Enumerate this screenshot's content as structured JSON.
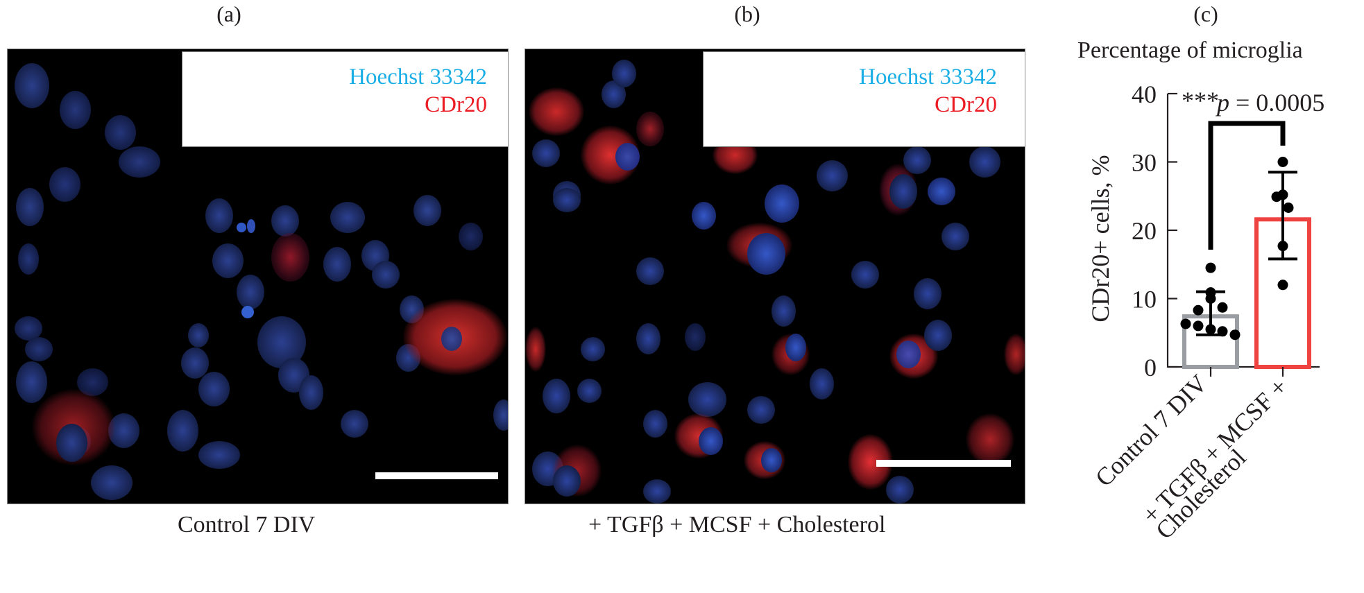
{
  "panels": {
    "a": {
      "letter": "(a)",
      "caption": "Control 7 DIV",
      "legend": {
        "hoechst": "Hoechst 33342",
        "cdr20": "CDr20"
      }
    },
    "b": {
      "letter": "(b)",
      "caption": "+ TGFβ + MCSF + Cholesterol",
      "legend": {
        "hoechst": "Hoechst 33342",
        "cdr20": "CDr20"
      }
    },
    "c": {
      "letter": "(c)"
    }
  },
  "colors": {
    "hoechst": "#1aaee6",
    "cdr20": "#ec1c24",
    "control_bar": "#9a9da1",
    "treated_bar": "#ef4341"
  },
  "chart_data": {
    "type": "bar",
    "title": "Percentage of microglia",
    "xlabel": "",
    "ylabel": "CDr20+ cells, %",
    "ylim": [
      0,
      40
    ],
    "yticks": [
      0,
      10,
      20,
      30,
      40
    ],
    "categories": [
      "Control 7 DIV",
      "+ TGFβ + MCSF + Cholesterol"
    ],
    "category_labels_display": [
      [
        "Control 7 DIV"
      ],
      [
        "+ TGFβ + MCSF +",
        "Cholesterol"
      ]
    ],
    "values": [
      7.7,
      21.9
    ],
    "error_bars": [
      {
        "lower": 4.7,
        "upper": 11.0
      },
      {
        "lower": 15.8,
        "upper": 28.5
      }
    ],
    "points": [
      [
        14.5,
        10.9,
        10.0,
        8.3,
        8.7,
        6.3,
        6.0,
        5.5,
        5.2,
        4.7
      ],
      [
        30.0,
        24.9,
        25.2,
        23.3,
        17.7,
        12.0
      ]
    ],
    "annotation": {
      "stars": "***",
      "text": "p = 0.0005"
    },
    "grid": false,
    "legend": null
  }
}
